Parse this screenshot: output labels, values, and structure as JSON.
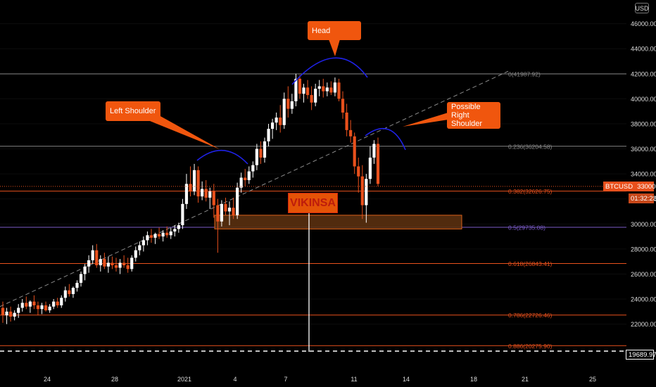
{
  "currency_label": "USD",
  "annotations": {
    "head": "Head",
    "left_shoulder": "Left Shoulder",
    "right_shoulder_line1": "Possible Right",
    "right_shoulder_line2": "Shoulder"
  },
  "watermark": "VIKINSA",
  "price_tag": {
    "symbol": "BTCUSD",
    "price": "33000.00",
    "countdown": "01:32:23",
    "alert_price": "19689.97"
  },
  "colors": {
    "background": "#000000",
    "candle_up": "#ffffff",
    "candle_down": "#e8501c",
    "fib_line": "#e8501c",
    "fib_mid": "#7b5cc8",
    "fib_top": "#888888",
    "arc": "#1f22e6",
    "zone_fill": "#5a3010",
    "zone_border": "#d8601a"
  },
  "chart_data": {
    "type": "candlestick",
    "symbol": "BTCUSD",
    "x_tick_labels": [
      "24",
      "28",
      "2021",
      "4",
      "7",
      "11",
      "14",
      "18",
      "21",
      "25"
    ],
    "y_axis": {
      "min": 19000,
      "max": 47000,
      "tick_values": [
        22000,
        24000,
        26000,
        28000,
        30000,
        32000,
        34000,
        36000,
        38000,
        40000,
        42000,
        44000,
        46000
      ],
      "tick_labels": [
        "22000.00",
        "24000.00",
        "26000.00",
        "28000.00",
        "30000.00",
        "32000.00",
        "34000.00",
        "36000.00",
        "38000.00",
        "40000.00",
        "42000.00",
        "44000.00",
        "46000.00"
      ]
    },
    "fib_levels": [
      {
        "label": "0(41987.92)",
        "ratio": 0,
        "price": 41987.92
      },
      {
        "label": "0.236(36204.58)",
        "ratio": 0.236,
        "price": 36204.58
      },
      {
        "label": "0.382(32626.75)",
        "ratio": 0.382,
        "price": 32626.75
      },
      {
        "label": "0.5(29735.08)",
        "ratio": 0.5,
        "price": 29735.08
      },
      {
        "label": "0.618(26843.41)",
        "ratio": 0.618,
        "price": 26843.41
      },
      {
        "label": "0.786(22726.46)",
        "ratio": 0.786,
        "price": 22726.46
      },
      {
        "label": "0.886(20275.90)",
        "ratio": 0.886,
        "price": 20275.9
      }
    ],
    "current_price": 33000,
    "alert_level": 19689.97,
    "support_zone": {
      "low": 29600,
      "high": 30700
    },
    "candles": [
      {
        "o": 23300,
        "h": 23800,
        "l": 22100,
        "c": 22700
      },
      {
        "o": 22700,
        "h": 23300,
        "l": 22000,
        "c": 23000
      },
      {
        "o": 23000,
        "h": 23400,
        "l": 22200,
        "c": 22600
      },
      {
        "o": 22600,
        "h": 23100,
        "l": 22300,
        "c": 22900
      },
      {
        "o": 22900,
        "h": 23600,
        "l": 22500,
        "c": 23300
      },
      {
        "o": 23300,
        "h": 24000,
        "l": 23000,
        "c": 23700
      },
      {
        "o": 23700,
        "h": 24200,
        "l": 23200,
        "c": 23400
      },
      {
        "o": 23400,
        "h": 23900,
        "l": 22900,
        "c": 23800
      },
      {
        "o": 23800,
        "h": 24300,
        "l": 23200,
        "c": 23500
      },
      {
        "o": 23500,
        "h": 23800,
        "l": 22700,
        "c": 23200
      },
      {
        "o": 23200,
        "h": 23700,
        "l": 22800,
        "c": 23500
      },
      {
        "o": 23500,
        "h": 23800,
        "l": 23000,
        "c": 23100
      },
      {
        "o": 23100,
        "h": 23600,
        "l": 22900,
        "c": 23400
      },
      {
        "o": 23400,
        "h": 24000,
        "l": 23200,
        "c": 23800
      },
      {
        "o": 23800,
        "h": 24100,
        "l": 23300,
        "c": 23500
      },
      {
        "o": 23500,
        "h": 24300,
        "l": 23300,
        "c": 24100
      },
      {
        "o": 24100,
        "h": 25000,
        "l": 23800,
        "c": 24700
      },
      {
        "o": 24700,
        "h": 25200,
        "l": 24200,
        "c": 24400
      },
      {
        "o": 24400,
        "h": 25000,
        "l": 24100,
        "c": 24900
      },
      {
        "o": 24900,
        "h": 25500,
        "l": 24600,
        "c": 25300
      },
      {
        "o": 25300,
        "h": 26200,
        "l": 25000,
        "c": 26000
      },
      {
        "o": 26000,
        "h": 26800,
        "l": 25500,
        "c": 26600
      },
      {
        "o": 26600,
        "h": 27500,
        "l": 26100,
        "c": 27100
      },
      {
        "o": 27100,
        "h": 28300,
        "l": 26800,
        "c": 27900
      },
      {
        "o": 27900,
        "h": 28400,
        "l": 26500,
        "c": 26700
      },
      {
        "o": 26700,
        "h": 27500,
        "l": 26200,
        "c": 27200
      },
      {
        "o": 27200,
        "h": 27700,
        "l": 26400,
        "c": 26600
      },
      {
        "o": 26600,
        "h": 27400,
        "l": 26100,
        "c": 26900
      },
      {
        "o": 26900,
        "h": 27400,
        "l": 26400,
        "c": 26700
      },
      {
        "o": 26700,
        "h": 27300,
        "l": 26200,
        "c": 26500
      },
      {
        "o": 26500,
        "h": 27200,
        "l": 26000,
        "c": 26900
      },
      {
        "o": 26900,
        "h": 27500,
        "l": 26500,
        "c": 26700
      },
      {
        "o": 26700,
        "h": 27300,
        "l": 26100,
        "c": 26400
      },
      {
        "o": 26400,
        "h": 27500,
        "l": 26200,
        "c": 27300
      },
      {
        "o": 27300,
        "h": 28200,
        "l": 27000,
        "c": 27900
      },
      {
        "o": 27900,
        "h": 28600,
        "l": 27500,
        "c": 28300
      },
      {
        "o": 28300,
        "h": 29000,
        "l": 27800,
        "c": 28700
      },
      {
        "o": 28700,
        "h": 29400,
        "l": 28300,
        "c": 29100
      },
      {
        "o": 29100,
        "h": 29600,
        "l": 28500,
        "c": 28900
      },
      {
        "o": 28900,
        "h": 29300,
        "l": 28400,
        "c": 29200
      },
      {
        "o": 29200,
        "h": 29700,
        "l": 28800,
        "c": 29000
      },
      {
        "o": 29000,
        "h": 29500,
        "l": 28600,
        "c": 29300
      },
      {
        "o": 29300,
        "h": 29800,
        "l": 28900,
        "c": 29100
      },
      {
        "o": 29100,
        "h": 29700,
        "l": 28800,
        "c": 29400
      },
      {
        "o": 29400,
        "h": 29900,
        "l": 29000,
        "c": 29600
      },
      {
        "o": 29600,
        "h": 30100,
        "l": 29300,
        "c": 29900
      },
      {
        "o": 29900,
        "h": 32000,
        "l": 29600,
        "c": 31600
      },
      {
        "o": 31600,
        "h": 34000,
        "l": 31200,
        "c": 33200
      },
      {
        "o": 33200,
        "h": 34600,
        "l": 32200,
        "c": 32600
      },
      {
        "o": 32600,
        "h": 34800,
        "l": 32300,
        "c": 34300
      },
      {
        "o": 34300,
        "h": 34600,
        "l": 31700,
        "c": 32200
      },
      {
        "o": 32200,
        "h": 33400,
        "l": 31900,
        "c": 32800
      },
      {
        "o": 32800,
        "h": 33500,
        "l": 31800,
        "c": 32100
      },
      {
        "o": 32100,
        "h": 32900,
        "l": 31200,
        "c": 32600
      },
      {
        "o": 32600,
        "h": 33200,
        "l": 30500,
        "c": 31500
      },
      {
        "o": 31500,
        "h": 32000,
        "l": 27700,
        "c": 30200
      },
      {
        "o": 30200,
        "h": 31900,
        "l": 29800,
        "c": 31600
      },
      {
        "o": 31600,
        "h": 32100,
        "l": 30700,
        "c": 31000
      },
      {
        "o": 31000,
        "h": 31800,
        "l": 29900,
        "c": 31300
      },
      {
        "o": 31300,
        "h": 32100,
        "l": 30400,
        "c": 30700
      },
      {
        "o": 30700,
        "h": 33300,
        "l": 30400,
        "c": 32900
      },
      {
        "o": 32900,
        "h": 34100,
        "l": 32500,
        "c": 33700
      },
      {
        "o": 33700,
        "h": 34400,
        "l": 33000,
        "c": 33500
      },
      {
        "o": 33500,
        "h": 34600,
        "l": 33200,
        "c": 34200
      },
      {
        "o": 34200,
        "h": 35000,
        "l": 33700,
        "c": 34700
      },
      {
        "o": 34700,
        "h": 36400,
        "l": 34300,
        "c": 36000
      },
      {
        "o": 36000,
        "h": 36600,
        "l": 34800,
        "c": 35300
      },
      {
        "o": 35300,
        "h": 36900,
        "l": 34900,
        "c": 36600
      },
      {
        "o": 36600,
        "h": 38000,
        "l": 36200,
        "c": 37600
      },
      {
        "o": 37600,
        "h": 38400,
        "l": 36800,
        "c": 38100
      },
      {
        "o": 38100,
        "h": 38900,
        "l": 37500,
        "c": 38500
      },
      {
        "o": 38500,
        "h": 39500,
        "l": 37300,
        "c": 37900
      },
      {
        "o": 37900,
        "h": 40500,
        "l": 37600,
        "c": 40000
      },
      {
        "o": 40000,
        "h": 41000,
        "l": 38500,
        "c": 39200
      },
      {
        "o": 39200,
        "h": 40400,
        "l": 38800,
        "c": 39800
      },
      {
        "o": 39800,
        "h": 42000,
        "l": 39400,
        "c": 41600
      },
      {
        "o": 41600,
        "h": 41900,
        "l": 40000,
        "c": 40400
      },
      {
        "o": 40400,
        "h": 41200,
        "l": 39700,
        "c": 40900
      },
      {
        "o": 40900,
        "h": 41500,
        "l": 40000,
        "c": 40300
      },
      {
        "o": 40300,
        "h": 41000,
        "l": 39100,
        "c": 39700
      },
      {
        "o": 39700,
        "h": 41200,
        "l": 39400,
        "c": 40800
      },
      {
        "o": 40800,
        "h": 41500,
        "l": 40200,
        "c": 41000
      },
      {
        "o": 41000,
        "h": 41600,
        "l": 40100,
        "c": 40600
      },
      {
        "o": 40600,
        "h": 41300,
        "l": 40200,
        "c": 40900
      },
      {
        "o": 40900,
        "h": 41400,
        "l": 40300,
        "c": 40500
      },
      {
        "o": 40500,
        "h": 41700,
        "l": 40200,
        "c": 41300
      },
      {
        "o": 41300,
        "h": 41600,
        "l": 39800,
        "c": 40000
      },
      {
        "o": 40000,
        "h": 40600,
        "l": 38400,
        "c": 38900
      },
      {
        "o": 38900,
        "h": 39600,
        "l": 37000,
        "c": 37500
      },
      {
        "o": 37500,
        "h": 38300,
        "l": 36500,
        "c": 37000
      },
      {
        "o": 37000,
        "h": 37300,
        "l": 34000,
        "c": 34600
      },
      {
        "o": 34600,
        "h": 35300,
        "l": 32500,
        "c": 33800
      },
      {
        "o": 33800,
        "h": 34700,
        "l": 30400,
        "c": 31500
      },
      {
        "o": 31500,
        "h": 34000,
        "l": 30100,
        "c": 33600
      },
      {
        "o": 33600,
        "h": 36200,
        "l": 33200,
        "c": 35300
      },
      {
        "o": 35300,
        "h": 36700,
        "l": 34800,
        "c": 36400
      },
      {
        "o": 36400,
        "h": 36900,
        "l": 33000,
        "c": 33200
      }
    ]
  }
}
